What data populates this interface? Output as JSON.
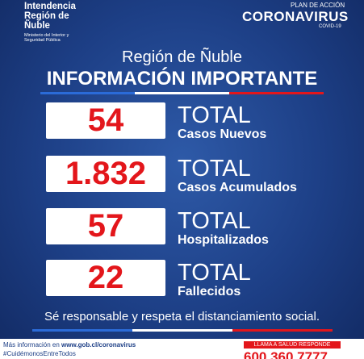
{
  "header": {
    "org": [
      "Intendencia",
      "Región de",
      "Ñuble"
    ],
    "ministry": [
      "Ministerio del Interior y",
      "Seguridad Pública"
    ],
    "plan": "PLAN DE ACCIÓN",
    "campaign": "CORONAVIRUS",
    "covid": "COVID-19"
  },
  "title": {
    "region": "Región de Ñuble",
    "headline": "INFORMACIÓN IMPORTANTE"
  },
  "stats": [
    {
      "value": "54",
      "total": "TOTAL",
      "label": "Casos Nuevos"
    },
    {
      "value": "1.832",
      "total": "TOTAL",
      "label": "Casos Acumulados"
    },
    {
      "value": "57",
      "total": "TOTAL",
      "label": "Hospitalizados"
    },
    {
      "value": "22",
      "total": "TOTAL",
      "label": "Fallecidos"
    }
  ],
  "tagline": "Sé responsable y respeta el distanciamiento social.",
  "footer": {
    "info_prefix": "Más información en",
    "info_url": "www.gob.cl/coronavirus",
    "hashtag": "#CuidémonosEntreTodos",
    "hotline_label": "LLAMA A SALUD RESPONDE",
    "hotline": "600 360 7777"
  }
}
